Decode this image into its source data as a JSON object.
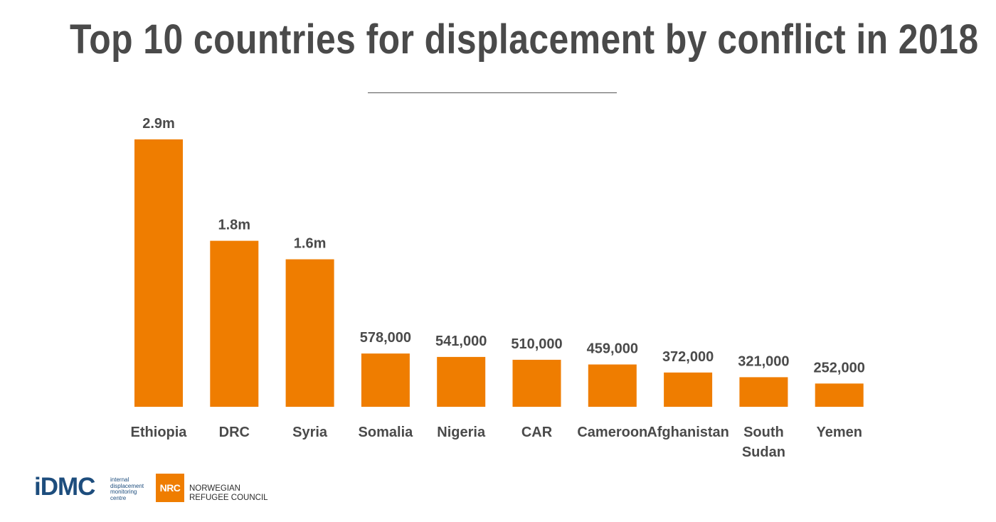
{
  "page": {
    "title": "Top 10 countries for displacement by conflict in 2018"
  },
  "colors": {
    "bar": "#ef7d00",
    "label_text": "#4a4a4a",
    "title_text": "#4a4a4a",
    "idmc_blue": "#1d4d7d",
    "nrc_orange": "#ef7d00"
  },
  "chart_data": {
    "type": "bar",
    "title": "Top 10 countries for displacement by conflict in 2018",
    "xlabel": "",
    "ylabel": "",
    "grid": false,
    "legend": "none",
    "ylim": [
      0,
      2900000
    ],
    "categories": [
      "Ethiopia",
      "DRC",
      "Syria",
      "Somalia",
      "Nigeria",
      "CAR",
      "Cameroon",
      "Afghanistan",
      "South Sudan",
      "Yemen"
    ],
    "category_lines": [
      [
        "Ethiopia"
      ],
      [
        "DRC"
      ],
      [
        "Syria"
      ],
      [
        "Somalia"
      ],
      [
        "Nigeria"
      ],
      [
        "CAR"
      ],
      [
        "Cameroon"
      ],
      [
        "Afghanistan"
      ],
      [
        "South",
        "Sudan"
      ],
      [
        "Yemen"
      ]
    ],
    "values": [
      2900000,
      1800000,
      1600000,
      578000,
      541000,
      510000,
      459000,
      372000,
      321000,
      252000
    ],
    "data_labels": [
      "2.9m",
      "1.8m",
      "1.6m",
      "578,000",
      "541,000",
      "510,000",
      "459,000",
      "372,000",
      "321,000",
      "252,000"
    ]
  },
  "logos": {
    "idmc": {
      "wordmark": "iDMC",
      "subtitle_lines": [
        "internal",
        "displacement",
        "monitoring",
        "centre"
      ]
    },
    "nrc": {
      "mark": "NRC",
      "name_lines": [
        "NORWEGIAN",
        "REFUGEE COUNCIL"
      ]
    }
  }
}
